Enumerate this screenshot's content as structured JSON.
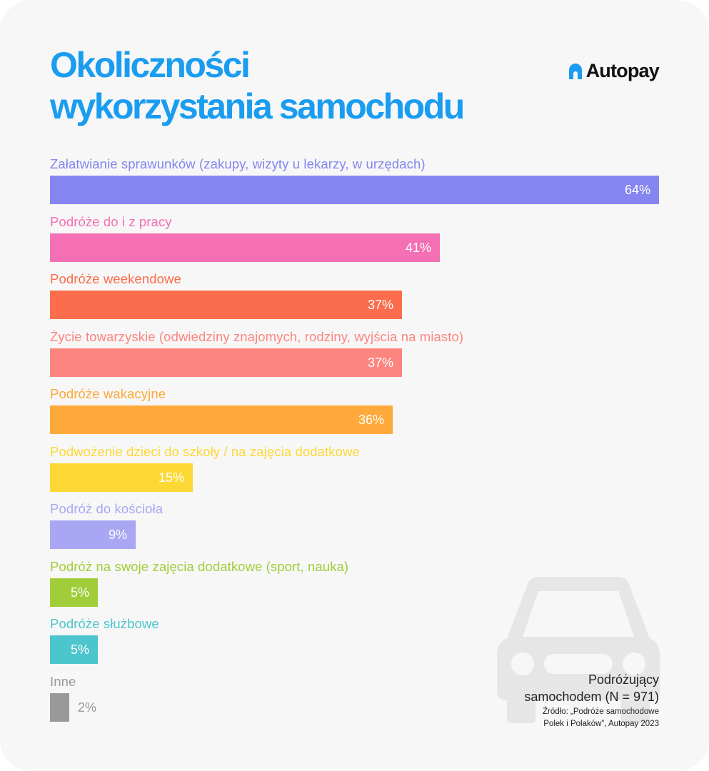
{
  "title": {
    "line1": "Okoliczności",
    "line2": "wykorzystania samochodu"
  },
  "brand": {
    "name": "Autopay",
    "icon": "autopay-logo-icon",
    "color": "#1a9df0"
  },
  "footnote": {
    "sample_line1": "Podróżujący",
    "sample_line2": "samochodem (N = 971)",
    "source_line1": "Źródło: „Podróże samochodowe",
    "source_line2": "Polek i Polaków”, Autopay 2023"
  },
  "decoration": {
    "icon": "car-silhouette-icon",
    "color": "#e6e6e6"
  },
  "chart_data": {
    "type": "bar",
    "orientation": "horizontal",
    "xlim": [
      0,
      64
    ],
    "grid": false,
    "categories": [
      "Załatwianie sprawunków (zakupy, wizyty u lekarzy, w urzędach)",
      "Podróże do i z pracy",
      "Podróże weekendowe",
      "Życie towarzyskie (odwiedziny znajomych, rodziny, wyjścia na miasto)",
      "Podróże wakacyjne",
      "Podwożenie dzieci do szkoły / na zajęcia dodatkowe",
      "Podróż do kościoła",
      "Podróż na swoje zajęcia dodatkowe (sport, nauka)",
      "Podróże służbowe",
      "Inne"
    ],
    "values": [
      64,
      41,
      37,
      37,
      36,
      15,
      9,
      5,
      5,
      2
    ],
    "value_labels": [
      "64%",
      "41%",
      "37%",
      "37%",
      "36%",
      "15%",
      "9%",
      "5%",
      "5%",
      "2%"
    ],
    "colors": [
      "#8585f2",
      "#f46fb3",
      "#fb6d4c",
      "#fd8580",
      "#fea93a",
      "#fdd835",
      "#a9a6f4",
      "#a2cd3a",
      "#4dc5cd",
      "#999999"
    ]
  }
}
